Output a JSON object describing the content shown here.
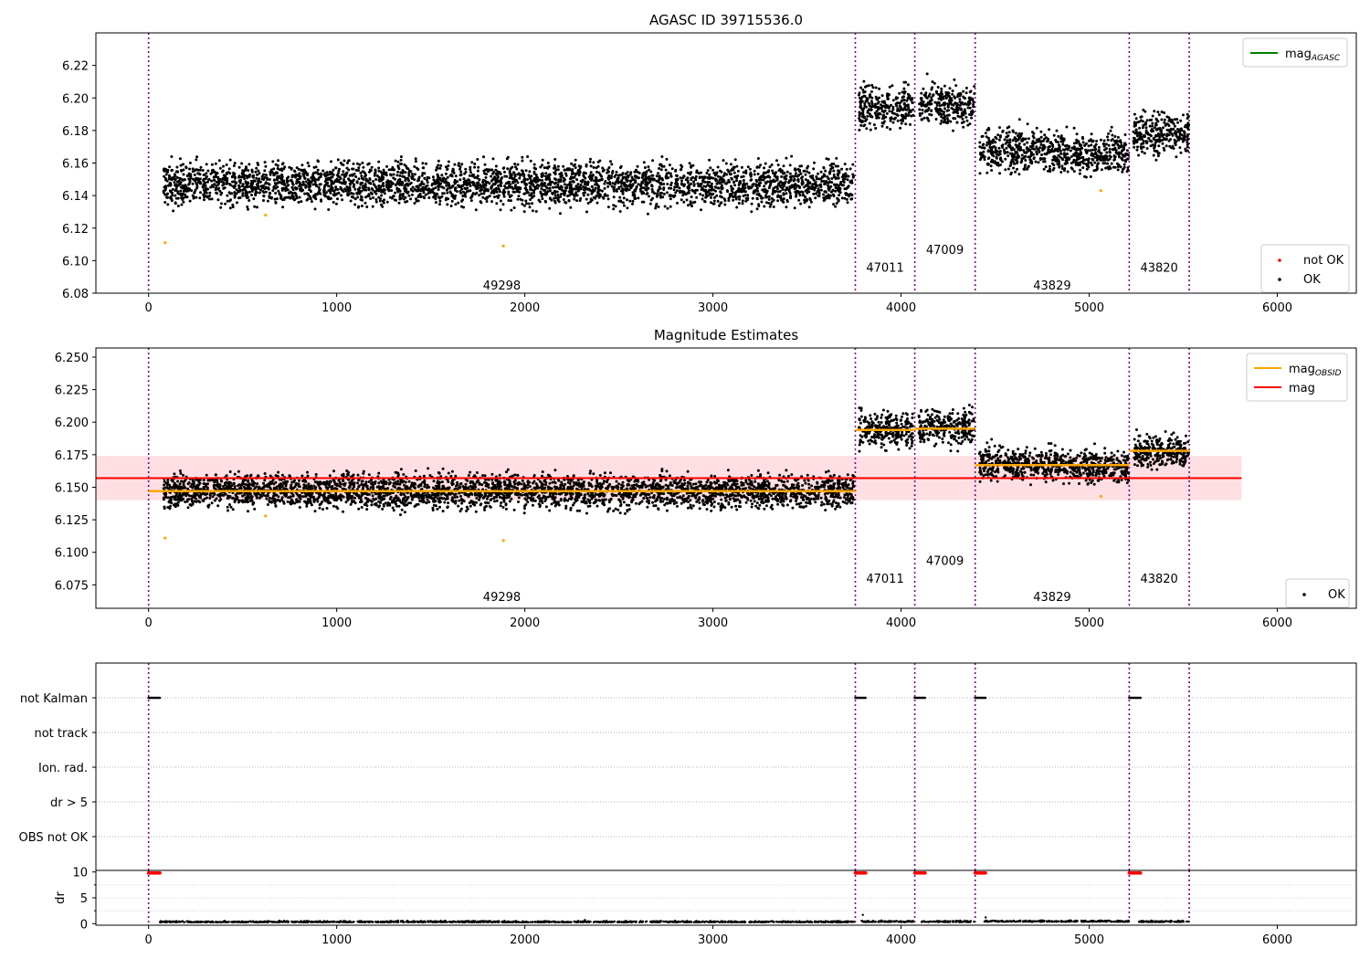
{
  "chart_data": [
    {
      "type": "scatter",
      "title": "AGASC ID 39715536.0",
      "xlim": [
        -280,
        6420
      ],
      "ylim": [
        6.08,
        6.24
      ],
      "x_ticks": [
        0,
        1000,
        2000,
        3000,
        4000,
        5000,
        6000
      ],
      "y_ticks": [
        6.08,
        6.1,
        6.12,
        6.14,
        6.16,
        6.18,
        6.2,
        6.22
      ],
      "grid": false,
      "legend_position": "top-right",
      "legend": [
        {
          "label": "mag",
          "sub": "AGASC",
          "color": "#008000",
          "kind": "line"
        }
      ],
      "legend2_position": "bottom-right",
      "legend2": [
        {
          "label": "not OK",
          "color": "#ff0000",
          "kind": "dot"
        },
        {
          "label": "OK",
          "color": "#000000",
          "kind": "dot"
        }
      ],
      "obsid_boundaries": [
        0,
        3757,
        4073,
        4394,
        5213,
        5532
      ],
      "obsid_labels": [
        {
          "text": "49298",
          "x": 1878,
          "y": 6.085
        },
        {
          "text": "47011",
          "x": 3915,
          "y": 6.096
        },
        {
          "text": "47009",
          "x": 4233,
          "y": 6.107
        },
        {
          "text": "43829",
          "x": 4803,
          "y": 6.085
        },
        {
          "text": "43820",
          "x": 5372,
          "y": 6.096
        }
      ],
      "series": [
        {
          "color": "#000000",
          "segments": [
            {
              "x": [
                80,
                3750
              ],
              "center": 6.147,
              "spread": 0.0065
            },
            {
              "x": [
                3775,
                4065
              ],
              "center": 6.194,
              "spread": 0.0065
            },
            {
              "x": [
                4095,
                4390
              ],
              "center": 6.196,
              "spread": 0.0065
            },
            {
              "x": [
                4415,
                4860
              ],
              "center": 6.168,
              "spread": 0.0065
            },
            {
              "x": [
                4860,
                5210
              ],
              "center": 6.166,
              "spread": 0.006
            },
            {
              "x": [
                5235,
                5530
              ],
              "center": 6.178,
              "spread": 0.006
            }
          ]
        },
        {
          "color": "#ffa500",
          "points": [
            [
              88,
              6.111
            ],
            [
              622,
              6.128
            ],
            [
              1886,
              6.109
            ],
            [
              5062,
              6.143
            ]
          ]
        }
      ]
    },
    {
      "type": "scatter",
      "title": "Magnitude Estimates",
      "xlim": [
        -280,
        6420
      ],
      "ylim": [
        6.057,
        6.257
      ],
      "x_ticks": [
        0,
        1000,
        2000,
        3000,
        4000,
        5000,
        6000
      ],
      "y_ticks": [
        6.075,
        6.1,
        6.125,
        6.15,
        6.175,
        6.2,
        6.225,
        6.25
      ],
      "grid": false,
      "legend_position": "top-right",
      "legend": [
        {
          "label": "mag",
          "sub": "OBSID",
          "color": "#ffa500",
          "kind": "line"
        },
        {
          "label": "mag",
          "sub": "",
          "color": "#ff0000",
          "kind": "line"
        }
      ],
      "legend2_position": "bottom-right",
      "legend2": [
        {
          "label": "OK",
          "color": "#000000",
          "kind": "dot"
        }
      ],
      "mag_line": {
        "y": 6.157,
        "x": [
          -280,
          5810
        ],
        "color": "#ff0000"
      },
      "mag_band": {
        "y": [
          6.14,
          6.174
        ],
        "x": [
          -280,
          5810
        ],
        "color": "#ffc0c8"
      },
      "obsid_mags": [
        {
          "x": [
            0,
            3757
          ],
          "y": 6.147
        },
        {
          "x": [
            3757,
            4073
          ],
          "y": 6.194
        },
        {
          "x": [
            4073,
            4394
          ],
          "y": 6.195
        },
        {
          "x": [
            4394,
            5213
          ],
          "y": 6.167
        },
        {
          "x": [
            5213,
            5532
          ],
          "y": 6.178
        }
      ],
      "obsid_boundaries": [
        0,
        3757,
        4073,
        4394,
        5213,
        5532
      ],
      "obsid_labels": [
        {
          "text": "49298",
          "x": 1878,
          "y": 6.066
        },
        {
          "text": "47011",
          "x": 3915,
          "y": 6.08
        },
        {
          "text": "47009",
          "x": 4233,
          "y": 6.094
        },
        {
          "text": "43829",
          "x": 4803,
          "y": 6.066
        },
        {
          "text": "43820",
          "x": 5372,
          "y": 6.08
        }
      ],
      "series": [
        {
          "color": "#000000",
          "segments": [
            {
              "x": [
                80,
                3750
              ],
              "center": 6.147,
              "spread": 0.0065
            },
            {
              "x": [
                3775,
                4065
              ],
              "center": 6.194,
              "spread": 0.0065
            },
            {
              "x": [
                4095,
                4390
              ],
              "center": 6.196,
              "spread": 0.0065
            },
            {
              "x": [
                4415,
                4860
              ],
              "center": 6.168,
              "spread": 0.0065
            },
            {
              "x": [
                4860,
                5210
              ],
              "center": 6.166,
              "spread": 0.006
            },
            {
              "x": [
                5235,
                5530
              ],
              "center": 6.178,
              "spread": 0.006
            }
          ]
        },
        {
          "color": "#ffa500",
          "points": [
            [
              88,
              6.111
            ],
            [
              622,
              6.128
            ],
            [
              1886,
              6.109
            ],
            [
              5062,
              6.143
            ]
          ]
        }
      ]
    },
    {
      "type": "scatter",
      "title": "",
      "xlim": [
        -280,
        6420
      ],
      "categories": [
        "not Kalman",
        "not track",
        "Ion. rad.",
        "dr > 5",
        "OBS not OK"
      ],
      "flag_runs": [
        {
          "category": "not Kalman",
          "x": [
            0,
            62
          ]
        },
        {
          "category": "not Kalman",
          "x": [
            3757,
            3815
          ]
        },
        {
          "category": "not Kalman",
          "x": [
            4073,
            4128
          ]
        },
        {
          "category": "not Kalman",
          "x": [
            4394,
            4452
          ]
        },
        {
          "category": "not Kalman",
          "x": [
            5213,
            5275
          ]
        }
      ],
      "obsid_boundaries": [
        0,
        3757,
        4073,
        4394,
        5213,
        5532
      ],
      "grid": true
    },
    {
      "type": "scatter",
      "title": "",
      "xlim": [
        -280,
        6420
      ],
      "ylim": [
        -0.3,
        10.3
      ],
      "ylabel": "dr",
      "x_ticks": [
        0,
        1000,
        2000,
        3000,
        4000,
        5000,
        6000
      ],
      "y_ticks": [
        0,
        5,
        10
      ],
      "obsid_boundaries": [
        0,
        3757,
        4073,
        4394,
        5213,
        5532
      ],
      "red_runs": [
        [
          0,
          62
        ],
        [
          3757,
          3815
        ],
        [
          4073,
          4128
        ],
        [
          4394,
          4452
        ],
        [
          5213,
          5275
        ]
      ],
      "red_value": 9.8,
      "black_segments": [
        {
          "x": [
            60,
            3750
          ],
          "center": 0.25
        },
        {
          "x": [
            3790,
            4065
          ],
          "center": 0.3
        },
        {
          "x": [
            4110,
            4390
          ],
          "center": 0.3
        },
        {
          "x": [
            4440,
            5210
          ],
          "center": 0.35
        },
        {
          "x": [
            5260,
            5530
          ],
          "center": 0.3
        }
      ],
      "black_outliers": [
        [
          3797,
          1.7
        ],
        [
          4450,
          1.2
        ],
        [
          2320,
          0.7
        ]
      ]
    }
  ]
}
